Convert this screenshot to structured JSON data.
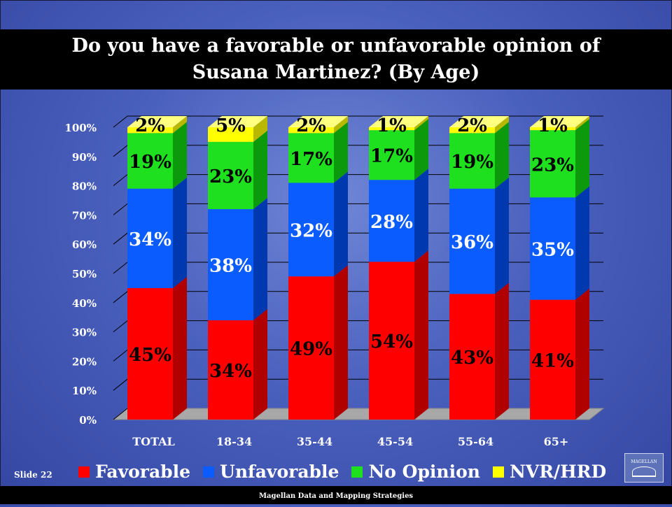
{
  "title_line1": "Do you have a favorable or unfavorable opinion of",
  "title_line2": "Susana Martinez? (By Age)",
  "slide_label": "Slide 22",
  "footer": "Magellan Data and Mapping Strategies",
  "logo_text": "MAGELLAN",
  "colors": {
    "favorable": "#ff0000",
    "unfavorable": "#0a5cff",
    "no_opinion": "#1ee01e",
    "nvr_hrd": "#ffff00"
  },
  "legend": [
    {
      "label": "Favorable",
      "color": "#ff0000"
    },
    {
      "label": "Unfavorable",
      "color": "#0a5cff"
    },
    {
      "label": "No Opinion",
      "color": "#1ee01e"
    },
    {
      "label": "NVR/HRD",
      "color": "#ffff00"
    }
  ],
  "chart_data": {
    "type": "bar",
    "stacked": true,
    "categories": [
      "TOTAL",
      "18-34",
      "35-44",
      "45-54",
      "55-64",
      "65+"
    ],
    "series": [
      {
        "name": "Favorable",
        "values": [
          45,
          34,
          49,
          54,
          43,
          41
        ]
      },
      {
        "name": "Unfavorable",
        "values": [
          34,
          38,
          32,
          28,
          36,
          35
        ]
      },
      {
        "name": "No Opinion",
        "values": [
          19,
          23,
          17,
          17,
          19,
          23
        ]
      },
      {
        "name": "NVR/HRD",
        "values": [
          2,
          5,
          2,
          1,
          2,
          1
        ]
      }
    ],
    "data_labels": [
      [
        "45%",
        "34%",
        "49%",
        "54%",
        "43%",
        "41%"
      ],
      [
        "34%",
        "38%",
        "32%",
        "28%",
        "36%",
        "35%"
      ],
      [
        "19%",
        "23%",
        "17%",
        "17%",
        "19%",
        "23%"
      ],
      [
        "2%",
        "5%",
        "2%",
        "1%",
        "2%",
        "1%"
      ]
    ],
    "yticks": [
      "0%",
      "10%",
      "20%",
      "30%",
      "40%",
      "50%",
      "60%",
      "70%",
      "80%",
      "90%",
      "100%"
    ],
    "ylim": [
      0,
      100
    ],
    "grid": true,
    "legend_position": "bottom"
  }
}
